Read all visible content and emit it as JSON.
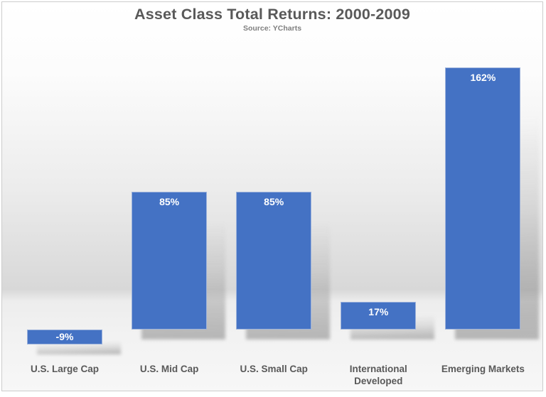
{
  "frame": {
    "border_color": "#cccccc"
  },
  "chart_data": {
    "type": "bar",
    "title": "Asset Class Total Returns: 2000-2009",
    "subtitle": "Source: YCharts",
    "categories": [
      "U.S. Large Cap",
      "U.S. Mid Cap",
      "U.S. Small Cap",
      "International Developed",
      "Emerging Markets"
    ],
    "values": [
      -9,
      85,
      85,
      17,
      162
    ],
    "value_labels": [
      "-9%",
      "85%",
      "85%",
      "17%",
      "162%"
    ],
    "xlabel": "",
    "ylabel": "",
    "ylim": [
      -25,
      185
    ],
    "grid": false,
    "legend": false,
    "layout_hints": {
      "value_labels_position": "inside-top",
      "bar_shadow": "perspective-lower-right",
      "background": "wall-floor-gradient"
    },
    "colors": {
      "bar_fill": "#4472c4",
      "bar_border": "#9cb2db",
      "value_label": "#ffffff",
      "title": "#595959",
      "subtitle": "#7f7f7f",
      "category_label": "#595959"
    }
  }
}
